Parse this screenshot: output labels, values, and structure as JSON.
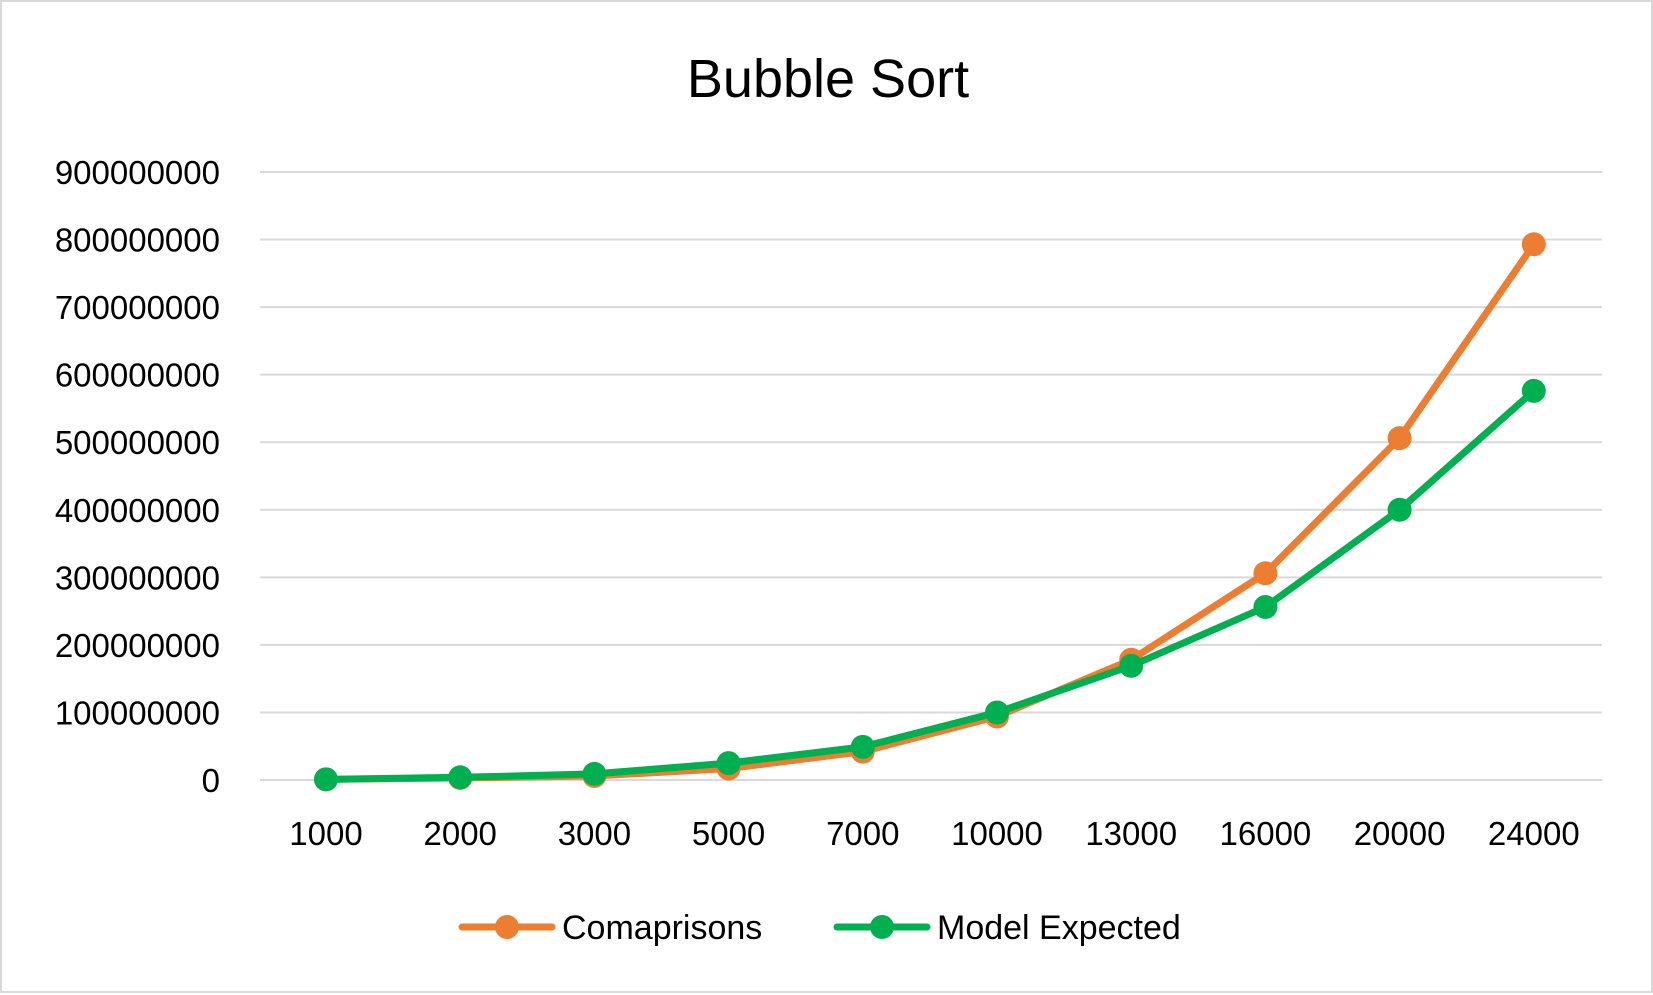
{
  "chart_data": {
    "type": "line",
    "title": "Bubble Sort",
    "xlabel": "",
    "ylabel": "",
    "categories": [
      "1000",
      "2000",
      "3000",
      "5000",
      "7000",
      "10000",
      "13000",
      "16000",
      "20000",
      "24000"
    ],
    "ylim": [
      0,
      900000000
    ],
    "yticks": [
      "0",
      "100000000",
      "200000000",
      "300000000",
      "400000000",
      "500000000",
      "600000000",
      "700000000",
      "800000000",
      "900000000"
    ],
    "grid": true,
    "legend_position": "bottom",
    "series": [
      {
        "name": "Comaprisons",
        "color": "#ED7D31",
        "values": [
          1000000,
          3000000,
          6000000,
          17000000,
          42000000,
          94000000,
          178000000,
          306000000,
          506000000,
          793000000
        ]
      },
      {
        "name": "Model Expected",
        "color": "#00B050",
        "values": [
          1000000,
          4000000,
          9000000,
          25000000,
          49000000,
          100000000,
          169000000,
          256000000,
          400000000,
          576000000
        ]
      }
    ]
  }
}
